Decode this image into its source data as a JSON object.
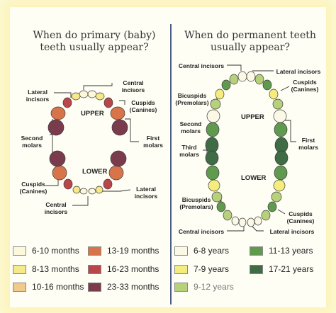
{
  "primary": {
    "title": "When do primary (baby) teeth usually appear?",
    "upper": "UPPER",
    "lower": "LOWER",
    "labels": {
      "central_incisors_top": "Central incisors",
      "lateral_incisors_top": "Lateral incisors",
      "cuspids_top": "Cuspids (Canines)",
      "second_molars": "Second molars",
      "first_molars": "First molars",
      "cuspids_bottom": "Cuspids (Canines)",
      "lateral_incisors_bottom": "Lateral incisors",
      "central_incisors_bottom": "Central incisors"
    },
    "legend": [
      {
        "label": "6-10 months",
        "color": "#fdf8dc"
      },
      {
        "label": "8-13 months",
        "color": "#f6e98a"
      },
      {
        "label": "10-16 months",
        "color": "#f3c98a"
      },
      {
        "label": "13-19 months",
        "color": "#d8744a"
      },
      {
        "label": "16-23 months",
        "color": "#b8464a"
      },
      {
        "label": "23-33 months",
        "color": "#7a3b4c"
      }
    ]
  },
  "permanent": {
    "title": "When do permanent teeth usually appear?",
    "upper": "UPPER",
    "lower": "LOWER",
    "labels": {
      "central_incisors_top": "Central incisors",
      "lateral_incisors_top": "Lateral incisors",
      "bicuspids_top": "Bicuspids (Premolars)",
      "cuspids_top": "Cuspids (Canines)",
      "second_molars": "Second molars",
      "first_molars": "First molars",
      "third_molars": "Third molars",
      "bicuspids_bottom": "Bicuspids (Premolars)",
      "cuspids_bottom": "Cuspids (Canines)",
      "central_incisors_bottom": "Central incisors",
      "lateral_incisors_bottom": "Lateral incisors"
    },
    "legend": [
      {
        "label": "6-8 years",
        "color": "#fbf8e6"
      },
      {
        "label": "7-9 years",
        "color": "#f4ec7c"
      },
      {
        "label": "9-12 years",
        "color": "#b7d07a"
      },
      {
        "label": "11-13 years",
        "color": "#5f9a4e"
      },
      {
        "label": "17-21 years",
        "color": "#3f6b45"
      }
    ]
  }
}
